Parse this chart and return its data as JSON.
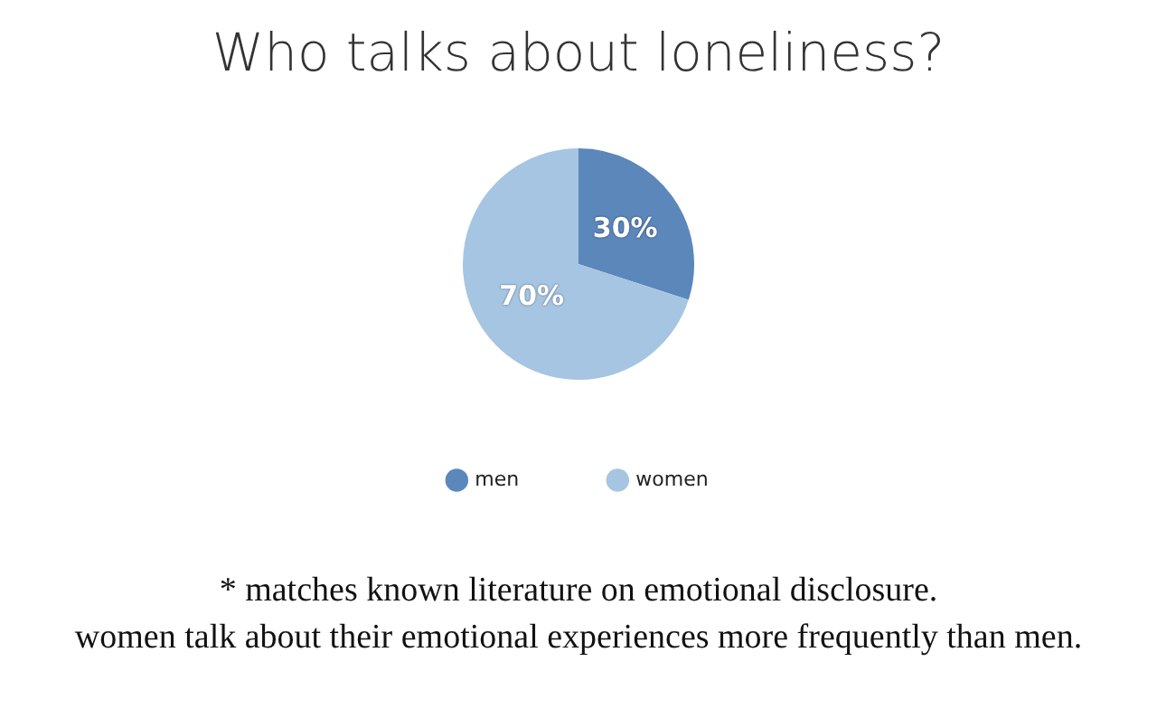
{
  "chart_data": {
    "type": "pie",
    "title": "Who talks about loneliness?",
    "categories": [
      "men",
      "women"
    ],
    "values": [
      30,
      70
    ],
    "colors": [
      "#5b87bb",
      "#a6c5e2"
    ],
    "value_labels": [
      "30%",
      "70%"
    ],
    "legend": "bottom",
    "annotations": [
      "* matches known literature on emotional disclosure.",
      "women talk about their emotional experiences more frequently than men."
    ]
  }
}
